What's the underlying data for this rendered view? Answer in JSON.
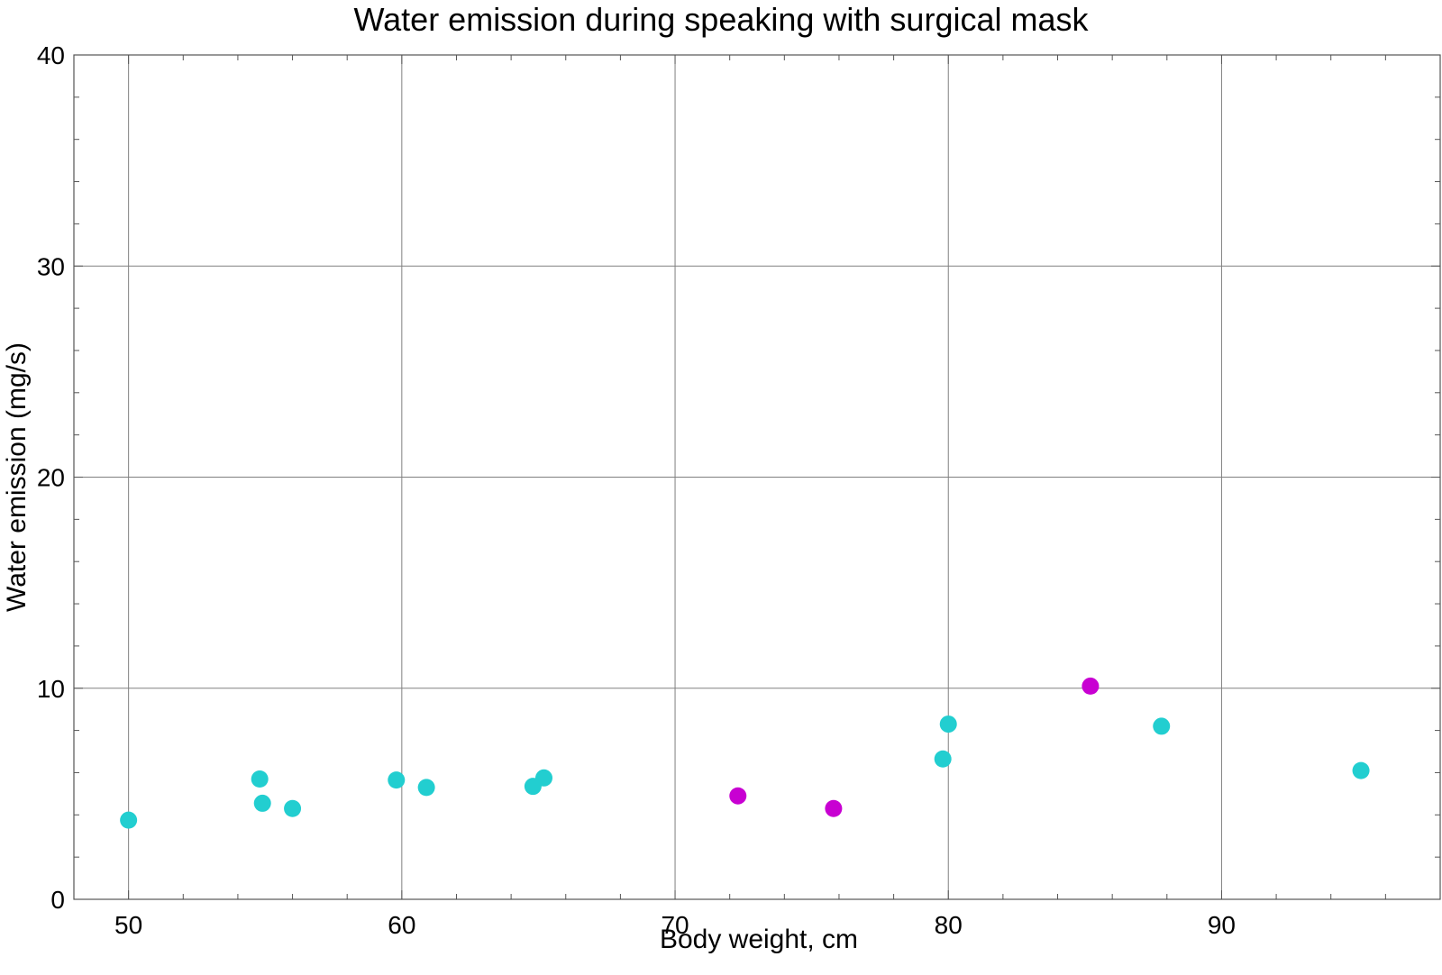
{
  "chart_data": {
    "type": "scatter",
    "title": "Water emission during speaking with surgical mask",
    "xlabel": "Body weight,  cm",
    "ylabel": "Water emission (mg/s)",
    "xlim": [
      48,
      98
    ],
    "ylim": [
      0,
      40
    ],
    "x_ticks": [
      50,
      60,
      70,
      80,
      90
    ],
    "y_ticks": [
      0,
      10,
      20,
      30,
      40
    ],
    "grid": true,
    "legend": "none",
    "series": [
      {
        "color": "#22CED0",
        "points": [
          {
            "x": 50.0,
            "y": 3.75
          },
          {
            "x": 54.8,
            "y": 5.7
          },
          {
            "x": 54.9,
            "y": 4.55
          },
          {
            "x": 56.0,
            "y": 4.3
          },
          {
            "x": 59.8,
            "y": 5.65
          },
          {
            "x": 60.9,
            "y": 5.3
          },
          {
            "x": 64.8,
            "y": 5.35
          },
          {
            "x": 65.2,
            "y": 5.75
          },
          {
            "x": 79.8,
            "y": 6.65
          },
          {
            "x": 80.0,
            "y": 8.3
          },
          {
            "x": 87.8,
            "y": 8.2
          },
          {
            "x": 95.1,
            "y": 6.1
          }
        ]
      },
      {
        "color": "#C800D2",
        "points": [
          {
            "x": 72.3,
            "y": 4.9
          },
          {
            "x": 75.8,
            "y": 4.3
          },
          {
            "x": 85.2,
            "y": 10.1
          }
        ]
      }
    ]
  }
}
